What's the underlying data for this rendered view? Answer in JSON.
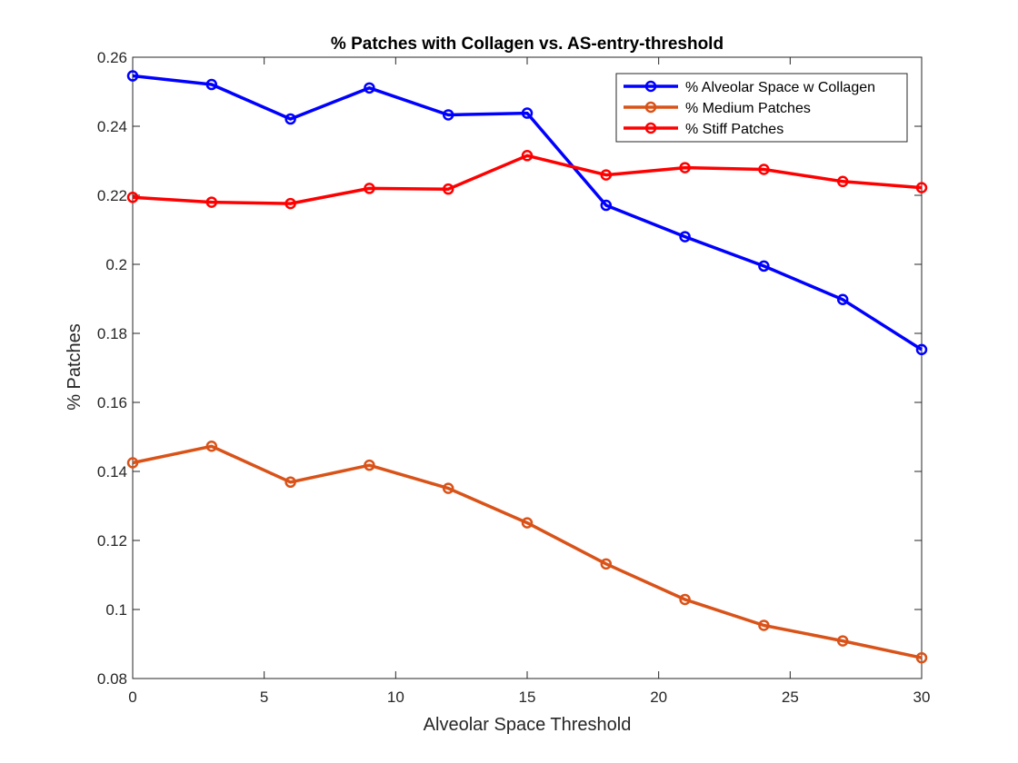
{
  "chart_data": {
    "type": "line",
    "title": "% Patches with Collagen vs. AS-entry-threshold",
    "xlabel": "Alveolar Space Threshold",
    "ylabel": "% Patches",
    "xlim": [
      0,
      30
    ],
    "ylim": [
      0.08,
      0.26
    ],
    "xticks": [
      0,
      5,
      10,
      15,
      20,
      25,
      30
    ],
    "xtick_labels": [
      "0",
      "5",
      "10",
      "15",
      "20",
      "25",
      "30"
    ],
    "yticks": [
      0.08,
      0.1,
      0.12,
      0.14,
      0.16,
      0.18,
      0.2,
      0.22,
      0.24,
      0.26
    ],
    "ytick_labels": [
      "0.08",
      "0.1",
      "0.12",
      "0.14",
      "0.16",
      "0.18",
      "0.2",
      "0.22",
      "0.24",
      "0.26"
    ],
    "grid": false,
    "legend_position": "top-right",
    "x": [
      0,
      3,
      6,
      9,
      12,
      15,
      18,
      21,
      24,
      27,
      30
    ],
    "series": [
      {
        "name": "% Alveolar Space w Collagen",
        "color": "#0000ff",
        "values": [
          0.2546,
          0.2521,
          0.2421,
          0.2511,
          0.2433,
          0.2438,
          0.2171,
          0.208,
          0.1995,
          0.1898,
          0.1753
        ]
      },
      {
        "name": "% Medium Patches",
        "color": "#d95319",
        "values": [
          0.1425,
          0.1473,
          0.1369,
          0.1418,
          0.1351,
          0.1251,
          0.1132,
          0.1029,
          0.0954,
          0.0909,
          0.086
        ]
      },
      {
        "name": "% Stiff Patches",
        "color": "#ff0000",
        "values": [
          0.2194,
          0.218,
          0.2176,
          0.222,
          0.2218,
          0.2315,
          0.2259,
          0.228,
          0.2275,
          0.224,
          0.2222
        ]
      }
    ]
  }
}
